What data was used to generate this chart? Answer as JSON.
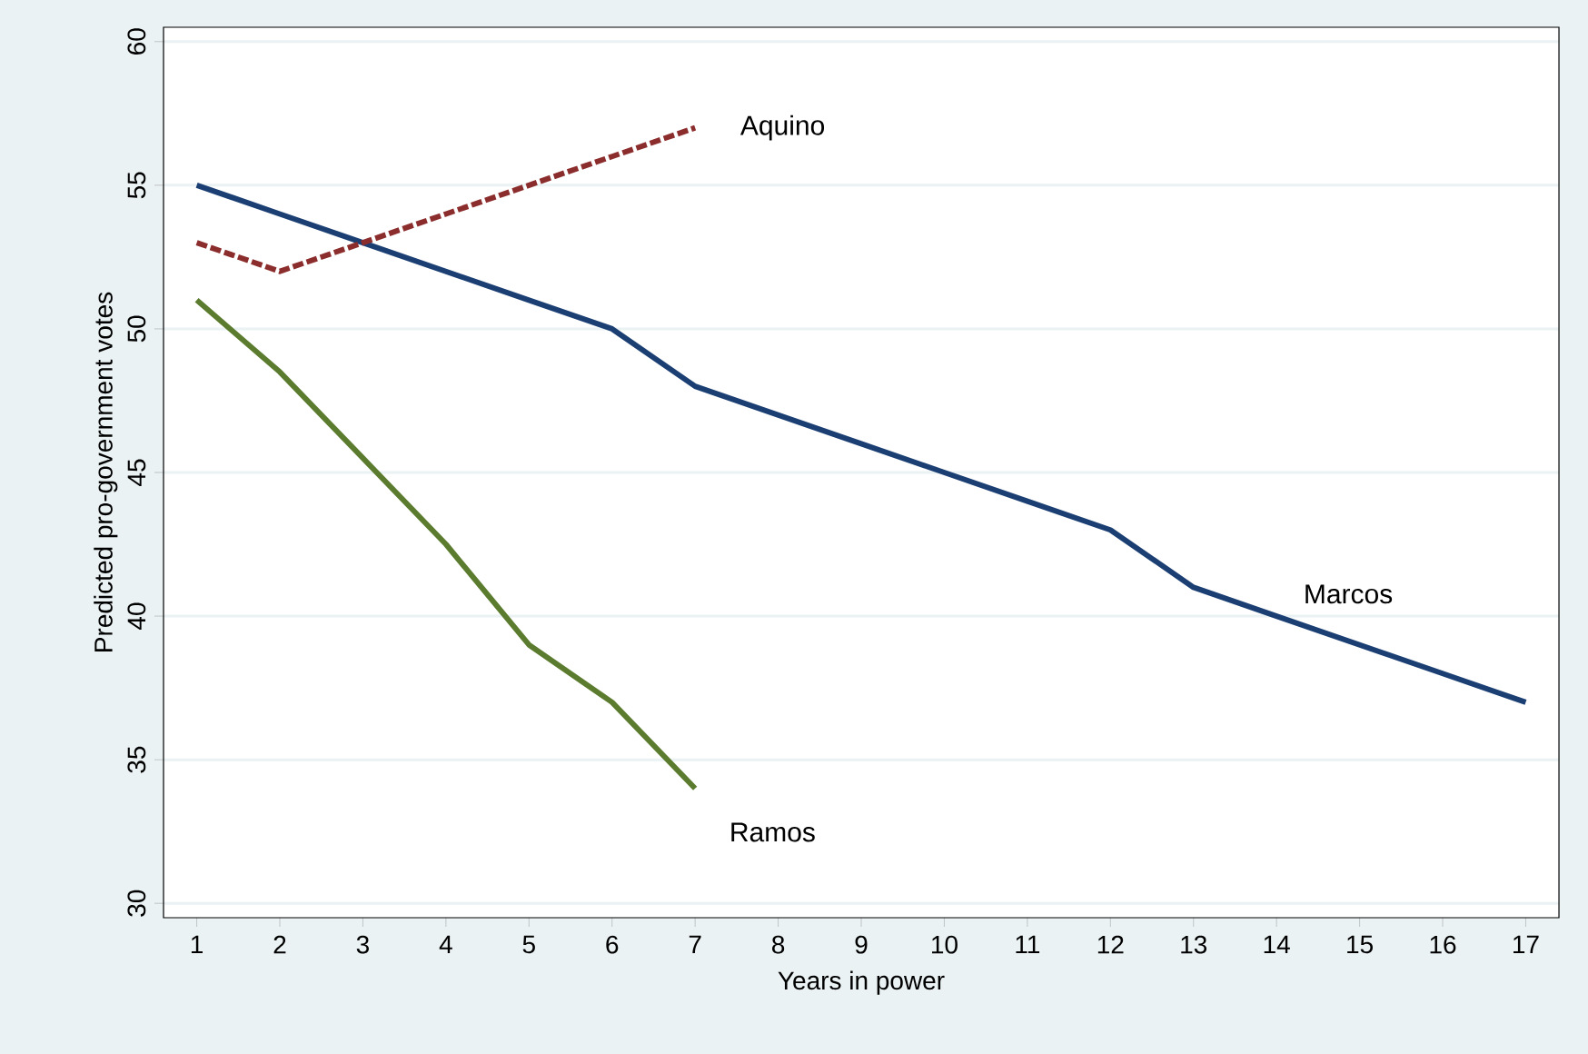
{
  "chart_data": {
    "type": "line",
    "xlabel": "Years in power",
    "ylabel": "Predicted pro-government votes",
    "xlim": [
      0.6,
      17.4
    ],
    "xticks": [
      1,
      2,
      3,
      4,
      5,
      6,
      7,
      8,
      9,
      10,
      11,
      12,
      13,
      14,
      15,
      16,
      17
    ],
    "ylim": [
      29.5,
      60.5
    ],
    "yticks": [
      30,
      35,
      40,
      45,
      50,
      55,
      60
    ],
    "grid": "y",
    "marker": "none",
    "series": [
      {
        "name": "Marcos",
        "color": "#1c3f73",
        "line_style": "solid",
        "x": [
          1,
          2,
          3,
          4,
          5,
          6,
          7,
          8,
          9,
          10,
          11,
          12,
          13,
          14,
          15,
          16,
          17
        ],
        "values": [
          55,
          54,
          53,
          52,
          51,
          50,
          48,
          47,
          46,
          45,
          44,
          43,
          41,
          40,
          39,
          38,
          37
        ]
      },
      {
        "name": "Aquino",
        "color": "#8c2d2d",
        "line_style": "dashed",
        "x": [
          1,
          2,
          3,
          4,
          5,
          6,
          7
        ],
        "values": [
          53,
          52,
          53,
          54,
          55,
          56,
          57
        ]
      },
      {
        "name": "Ramos",
        "color": "#5b7b2e",
        "line_style": "solid",
        "x": [
          1,
          2,
          3,
          4,
          5,
          6,
          7
        ],
        "values": [
          51,
          48.5,
          45.5,
          42.5,
          39,
          37,
          34
        ]
      }
    ]
  }
}
